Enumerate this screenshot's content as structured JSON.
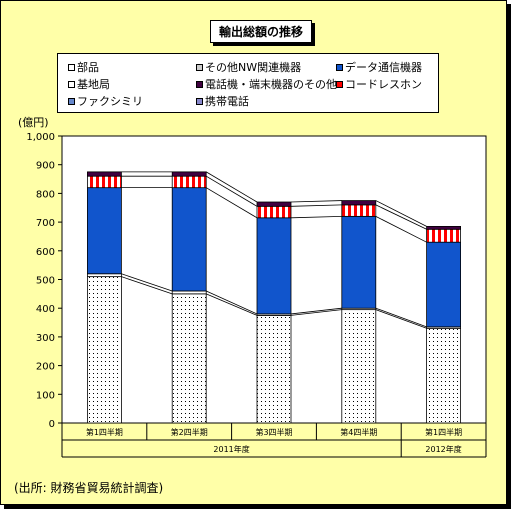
{
  "chart_data": {
    "type": "bar",
    "stacked": true,
    "title": "輸出総額の推移",
    "ylabel": "(億円)",
    "ylim": [
      0,
      1000
    ],
    "ytick_step": 100,
    "grid": false,
    "legend_position": "top",
    "categories": [
      "第1四半期",
      "第2四半期",
      "第3四半期",
      "第4四半期",
      "第1四半期"
    ],
    "category_groups": [
      {
        "label": "2011年度",
        "count": 4
      },
      {
        "label": "2012年度",
        "count": 1
      }
    ],
    "series": [
      {
        "name": "部品",
        "values": [
          510,
          450,
          375,
          395,
          330
        ],
        "color": "#ffffff",
        "pattern": "dots"
      },
      {
        "name": "基地局",
        "values": [
          10,
          10,
          5,
          5,
          5
        ],
        "color": "#ffffff",
        "pattern": "none"
      },
      {
        "name": "ファクシミリ",
        "values": [
          0,
          0,
          0,
          0,
          0
        ],
        "color": "#6688cc",
        "pattern": "none"
      },
      {
        "name": "その他NW関連機器",
        "values": [
          0,
          0,
          0,
          0,
          0
        ],
        "color": "#cccccc",
        "pattern": "none"
      },
      {
        "name": "電話機・端末機器のその他",
        "values": [
          0,
          0,
          0,
          0,
          0
        ],
        "color": "#400040",
        "pattern": "none"
      },
      {
        "name": "携帯電話",
        "values": [
          0,
          0,
          0,
          0,
          0
        ],
        "color": "#8888cc",
        "pattern": "none"
      },
      {
        "name": "データ通信機器",
        "values": [
          300,
          360,
          335,
          320,
          295
        ],
        "color": "#1155cc",
        "pattern": "none"
      },
      {
        "name": "コードレスホン",
        "values": [
          40,
          40,
          40,
          40,
          45
        ],
        "color": "#ff0000",
        "pattern": "vstripes"
      },
      {
        "name": "",
        "values": [
          15,
          15,
          15,
          15,
          10
        ],
        "color": "#400040",
        "pattern": "none"
      }
    ],
    "legend_order": [
      "部品",
      "その他NW関連機器",
      "データ通信機器",
      "基地局",
      "電話機・端末機器のその他",
      "コードレスホン",
      "ファクシミリ",
      "携帯電話"
    ],
    "legend_colors": [
      "#ffffff",
      "#cccccc",
      "#1155cc",
      "#ffffff",
      "#400040",
      "#ff0000",
      "#6688cc",
      "#8888cc"
    ]
  },
  "source": "(出所: 財務省貿易統計調査)"
}
